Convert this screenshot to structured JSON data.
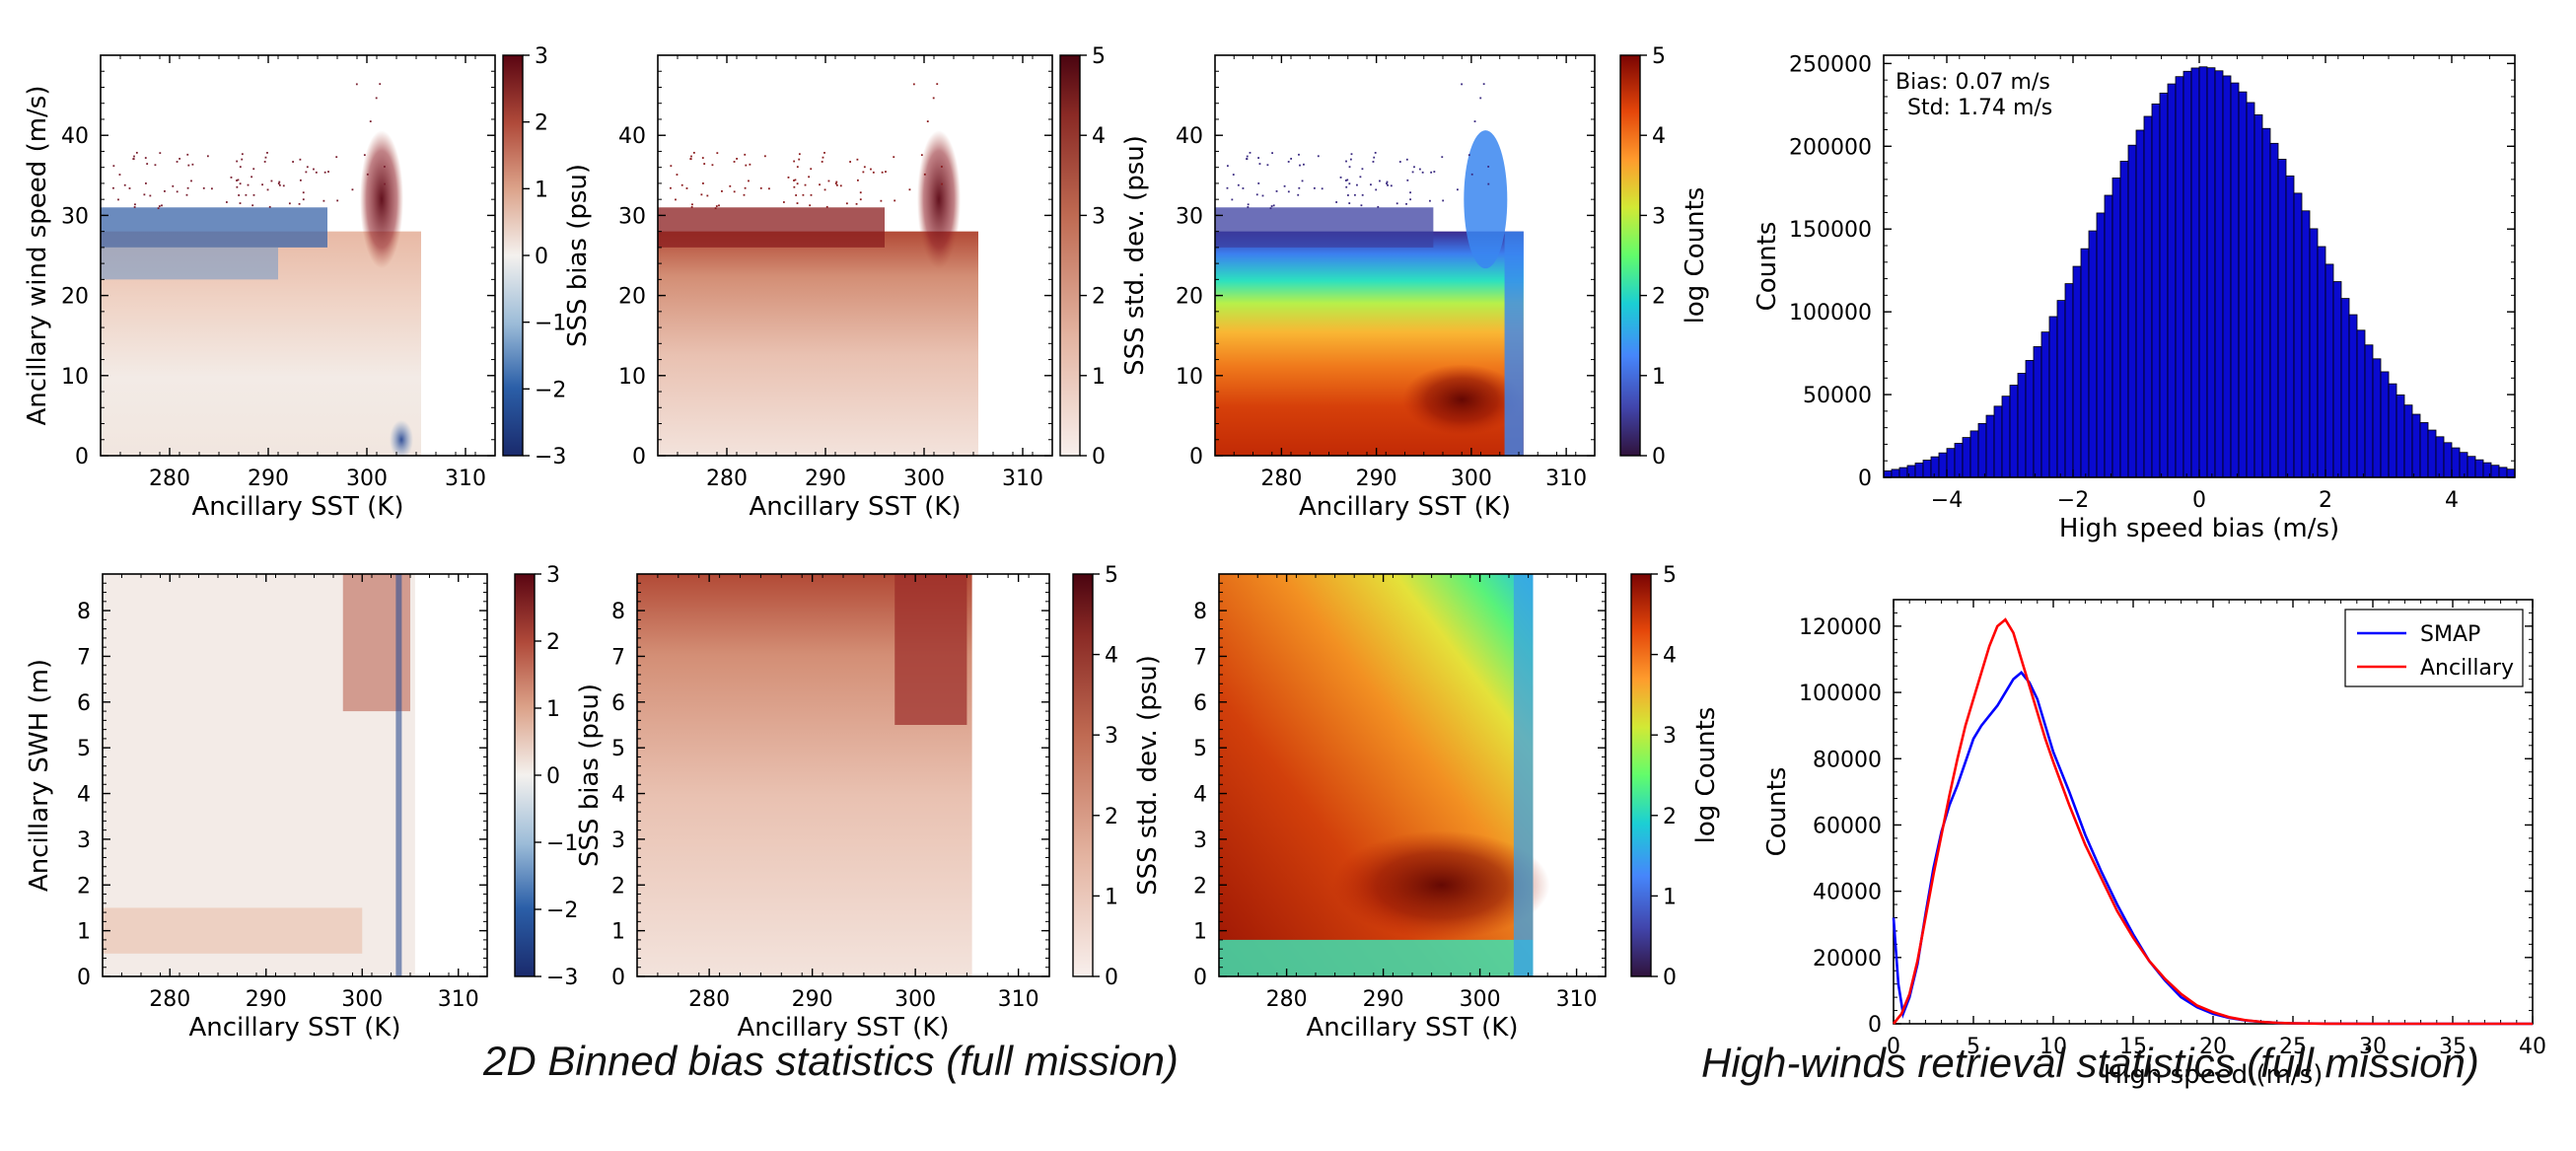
{
  "captions": {
    "left": "2D Binned bias statistics (full mission)",
    "right": "High-winds retrieval statistics (full mission)"
  },
  "colors": {
    "bias_negative": "#1f3f8f",
    "bias_zero": "#f4f1ee",
    "bias_positive": "#8e1020",
    "std_low": "#f6ece8",
    "std_high": "#5a0512",
    "hist_fill": "#0a0ad0",
    "smap_line": "#0000ff",
    "ancillary_line": "#ff0000"
  },
  "chart_data": [
    {
      "id": "bias-wind",
      "type": "heatmap",
      "xlabel": "Ancillary SST (K)",
      "ylabel": "Ancillary wind speed (m/s)",
      "xlim": [
        273,
        313
      ],
      "ylim": [
        0,
        50
      ],
      "xticks": [
        280,
        290,
        300,
        310
      ],
      "yticks": [
        0,
        10,
        20,
        30,
        40
      ],
      "colorbar": {
        "label": "SSS bias (psu)",
        "cmap": "diverging",
        "ticks": [
          -3,
          -2,
          -1,
          0,
          1,
          2,
          3
        ],
        "tick_labels": [
          "−3",
          "−2",
          "−1",
          "0",
          "1",
          "2",
          "3"
        ]
      }
    },
    {
      "id": "std-wind",
      "type": "heatmap",
      "xlabel": "Ancillary SST (K)",
      "ylabel": "",
      "xlim": [
        273,
        313
      ],
      "ylim": [
        0,
        50
      ],
      "xticks": [
        280,
        290,
        300,
        310
      ],
      "yticks": [
        0,
        10,
        20,
        30,
        40
      ],
      "colorbar": {
        "label": "SSS std. dev. (psu)",
        "cmap": "reds",
        "ticks": [
          0,
          1,
          2,
          3,
          4,
          5
        ],
        "tick_labels": [
          "0",
          "1",
          "2",
          "3",
          "4",
          "5"
        ]
      }
    },
    {
      "id": "count-wind",
      "type": "heatmap",
      "xlabel": "Ancillary SST (K)",
      "ylabel": "",
      "xlim": [
        273,
        313
      ],
      "ylim": [
        0,
        50
      ],
      "xticks": [
        280,
        290,
        300,
        310
      ],
      "yticks": [
        0,
        10,
        20,
        30,
        40
      ],
      "colorbar": {
        "label": "log Counts",
        "cmap": "turbo",
        "ticks": [
          0,
          1,
          2,
          3,
          4,
          5
        ],
        "tick_labels": [
          "0",
          "1",
          "2",
          "3",
          "4",
          "5"
        ]
      }
    },
    {
      "id": "hist-bias",
      "type": "bar",
      "xlabel": "High speed bias (m/s)",
      "ylabel": "Counts",
      "xlim": [
        -5,
        5
      ],
      "ylim": [
        0,
        255000
      ],
      "xticks": [
        -4,
        -2,
        0,
        2,
        4
      ],
      "xtick_labels": [
        "−4",
        "−2",
        "0",
        "2",
        "4"
      ],
      "yticks": [
        0,
        50000,
        100000,
        150000,
        200000,
        250000
      ],
      "annotation": [
        "Bias: 0.07 m/s",
        "Std: 1.74 m/s"
      ],
      "bias": 0.07,
      "std": 1.74,
      "peak": 248000
    },
    {
      "id": "bias-swh",
      "type": "heatmap",
      "xlabel": "Ancillary SST (K)",
      "ylabel": "Ancillary SWH (m)",
      "xlim": [
        273,
        313
      ],
      "ylim": [
        0,
        8.8
      ],
      "xticks": [
        280,
        290,
        300,
        310
      ],
      "yticks": [
        0,
        1,
        2,
        3,
        4,
        5,
        6,
        7,
        8
      ],
      "colorbar": {
        "label": "SSS bias (psu)",
        "cmap": "diverging",
        "ticks": [
          -3,
          -2,
          -1,
          0,
          1,
          2,
          3
        ],
        "tick_labels": [
          "−3",
          "−2",
          "−1",
          "0",
          "1",
          "2",
          "3"
        ]
      }
    },
    {
      "id": "std-swh",
      "type": "heatmap",
      "xlabel": "Ancillary SST (K)",
      "ylabel": "",
      "xlim": [
        273,
        313
      ],
      "ylim": [
        0,
        8.8
      ],
      "xticks": [
        280,
        290,
        300,
        310
      ],
      "yticks": [
        0,
        1,
        2,
        3,
        4,
        5,
        6,
        7,
        8
      ],
      "colorbar": {
        "label": "SSS std. dev. (psu)",
        "cmap": "reds",
        "ticks": [
          0,
          1,
          2,
          3,
          4,
          5
        ],
        "tick_labels": [
          "0",
          "1",
          "2",
          "3",
          "4",
          "5"
        ]
      }
    },
    {
      "id": "count-swh",
      "type": "heatmap",
      "xlabel": "Ancillary SST (K)",
      "ylabel": "",
      "xlim": [
        273,
        313
      ],
      "ylim": [
        0,
        8.8
      ],
      "xticks": [
        280,
        290,
        300,
        310
      ],
      "yticks": [
        0,
        1,
        2,
        3,
        4,
        5,
        6,
        7,
        8
      ],
      "colorbar": {
        "label": "log Counts",
        "cmap": "turbo",
        "ticks": [
          0,
          1,
          2,
          3,
          4,
          5
        ],
        "tick_labels": [
          "0",
          "1",
          "2",
          "3",
          "4",
          "5"
        ]
      }
    },
    {
      "id": "speed-dist",
      "type": "line",
      "xlabel": "High speed (m/s)",
      "ylabel": "Counts",
      "xlim": [
        0,
        40
      ],
      "ylim": [
        0,
        128000
      ],
      "xticks": [
        0,
        5,
        10,
        15,
        20,
        25,
        30,
        35,
        40
      ],
      "yticks": [
        0,
        20000,
        40000,
        60000,
        80000,
        100000,
        120000
      ],
      "legend": "top-right",
      "series": [
        {
          "name": "SMAP",
          "color": "#0000ff",
          "x": [
            0,
            0.3,
            0.6,
            1,
            1.5,
            2,
            2.5,
            3,
            3.5,
            4,
            4.5,
            5,
            5.5,
            6,
            6.5,
            7,
            7.5,
            8,
            8.5,
            9,
            9.5,
            10,
            11,
            12,
            13,
            14,
            15,
            16,
            17,
            18,
            19,
            20,
            21,
            22,
            23,
            24,
            25,
            27,
            30,
            35,
            40
          ],
          "y": [
            32000,
            12000,
            3000,
            8000,
            18000,
            33000,
            47000,
            58000,
            66000,
            72000,
            79000,
            86000,
            90000,
            93000,
            96000,
            100000,
            104000,
            106000,
            103000,
            98000,
            90000,
            82000,
            70000,
            57000,
            46000,
            36000,
            27000,
            19000,
            13000,
            8000,
            5000,
            3000,
            1800,
            1000,
            600,
            300,
            150,
            50,
            10,
            0,
            0
          ]
        },
        {
          "name": "Ancillary",
          "color": "#ff0000",
          "x": [
            0,
            0.5,
            1,
            1.5,
            2,
            2.5,
            3,
            3.5,
            4,
            4.5,
            5,
            5.5,
            6,
            6.5,
            7,
            7.5,
            8,
            8.5,
            9,
            9.5,
            10,
            11,
            12,
            13,
            14,
            15,
            16,
            17,
            18,
            19,
            20,
            21,
            22,
            23,
            24,
            25,
            27,
            30,
            35,
            40
          ],
          "y": [
            0,
            3000,
            9000,
            19000,
            32000,
            45000,
            57000,
            69000,
            80000,
            90000,
            98000,
            106000,
            114000,
            120000,
            122000,
            118000,
            110000,
            102000,
            94000,
            86000,
            79000,
            66000,
            54000,
            44000,
            34000,
            26000,
            19000,
            13500,
            9000,
            5500,
            3500,
            2000,
            1100,
            600,
            300,
            150,
            40,
            5,
            0,
            0
          ]
        }
      ]
    }
  ]
}
